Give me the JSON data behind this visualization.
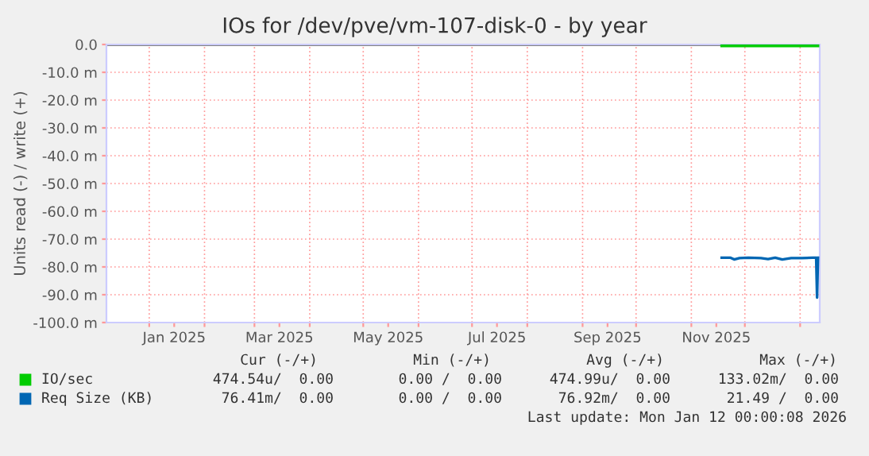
{
  "chart_data": {
    "type": "line",
    "title": "IOs for /dev/pve/vm-107-disk-0 - by year",
    "ylabel": "Units read (-) / write (+)",
    "xlim": [
      "2024-12-08",
      "2026-01-12"
    ],
    "xticks": [
      {
        "value": "2025-01-01",
        "label": null
      },
      {
        "value": "2025-01-15",
        "label": "Jan 2025"
      },
      {
        "value": "2025-02-01",
        "label": null
      },
      {
        "value": "2025-03-01",
        "label": null
      },
      {
        "value": "2025-03-15",
        "label": "Mar 2025"
      },
      {
        "value": "2025-04-01",
        "label": null
      },
      {
        "value": "2025-05-01",
        "label": null
      },
      {
        "value": "2025-05-15",
        "label": "May 2025"
      },
      {
        "value": "2025-06-01",
        "label": null
      },
      {
        "value": "2025-07-01",
        "label": null
      },
      {
        "value": "2025-07-15",
        "label": "Jul 2025"
      },
      {
        "value": "2025-08-01",
        "label": null
      },
      {
        "value": "2025-09-01",
        "label": null
      },
      {
        "value": "2025-09-15",
        "label": "Sep 2025"
      },
      {
        "value": "2025-10-01",
        "label": null
      },
      {
        "value": "2025-11-01",
        "label": null
      },
      {
        "value": "2025-11-15",
        "label": "Nov 2025"
      },
      {
        "value": "2025-12-01",
        "label": null
      },
      {
        "value": "2026-01-01",
        "label": null
      }
    ],
    "ylim": [
      -100,
      0
    ],
    "yticks": [
      {
        "value": 0,
        "label": "0.0"
      },
      {
        "value": -10,
        "label": "-10.0 m"
      },
      {
        "value": -20,
        "label": "-20.0 m"
      },
      {
        "value": -30,
        "label": "-30.0 m"
      },
      {
        "value": -40,
        "label": "-40.0 m"
      },
      {
        "value": -50,
        "label": "-50.0 m"
      },
      {
        "value": -60,
        "label": "-60.0 m"
      },
      {
        "value": -70,
        "label": "-70.0 m"
      },
      {
        "value": -80,
        "label": "-80.0 m"
      },
      {
        "value": -90,
        "label": "-90.0 m"
      },
      {
        "value": -100,
        "label": "-100.0 m"
      }
    ],
    "grid": true,
    "legend": "bottom",
    "ref_lines": [
      {
        "axis": "y",
        "value": 0,
        "color": "#000000"
      }
    ],
    "series": [
      {
        "name": "IO/sec",
        "color": "#00cc00",
        "x": [
          "2025-11-18",
          "2025-12-10",
          "2026-01-11"
        ],
        "values": [
          -0.5,
          -0.5,
          -0.5
        ]
      },
      {
        "name": "Req Size (KB)",
        "color": "#0066b3",
        "x": [
          "2025-11-18",
          "2025-11-23",
          "2025-11-25",
          "2025-11-28",
          "2025-12-03",
          "2025-12-10",
          "2025-12-14",
          "2025-12-18",
          "2025-12-22",
          "2025-12-27",
          "2026-01-02",
          "2026-01-08",
          "2026-01-10",
          "2026-01-10T12:00",
          "2026-01-11"
        ],
        "values": [
          -76.7,
          -76.7,
          -77.3,
          -76.8,
          -76.7,
          -76.8,
          -77.2,
          -76.7,
          -77.3,
          -76.8,
          -76.8,
          -76.7,
          -76.7,
          -91,
          -76.7
        ]
      }
    ],
    "annotations": [
      "Cur (-/+)",
      "Min (-/+)",
      "Avg (-/+)",
      "Max (-/+)",
      "474.54u/  0.00",
      "0.00 /  0.00",
      "474.99u/  0.00",
      "133.02m/  0.00",
      "76.41m/  0.00",
      "0.00 /  0.00",
      "76.92m/  0.00",
      "21.49 /  0.00",
      "Last update: Mon Jan 12 00:00:08 2026"
    ]
  }
}
